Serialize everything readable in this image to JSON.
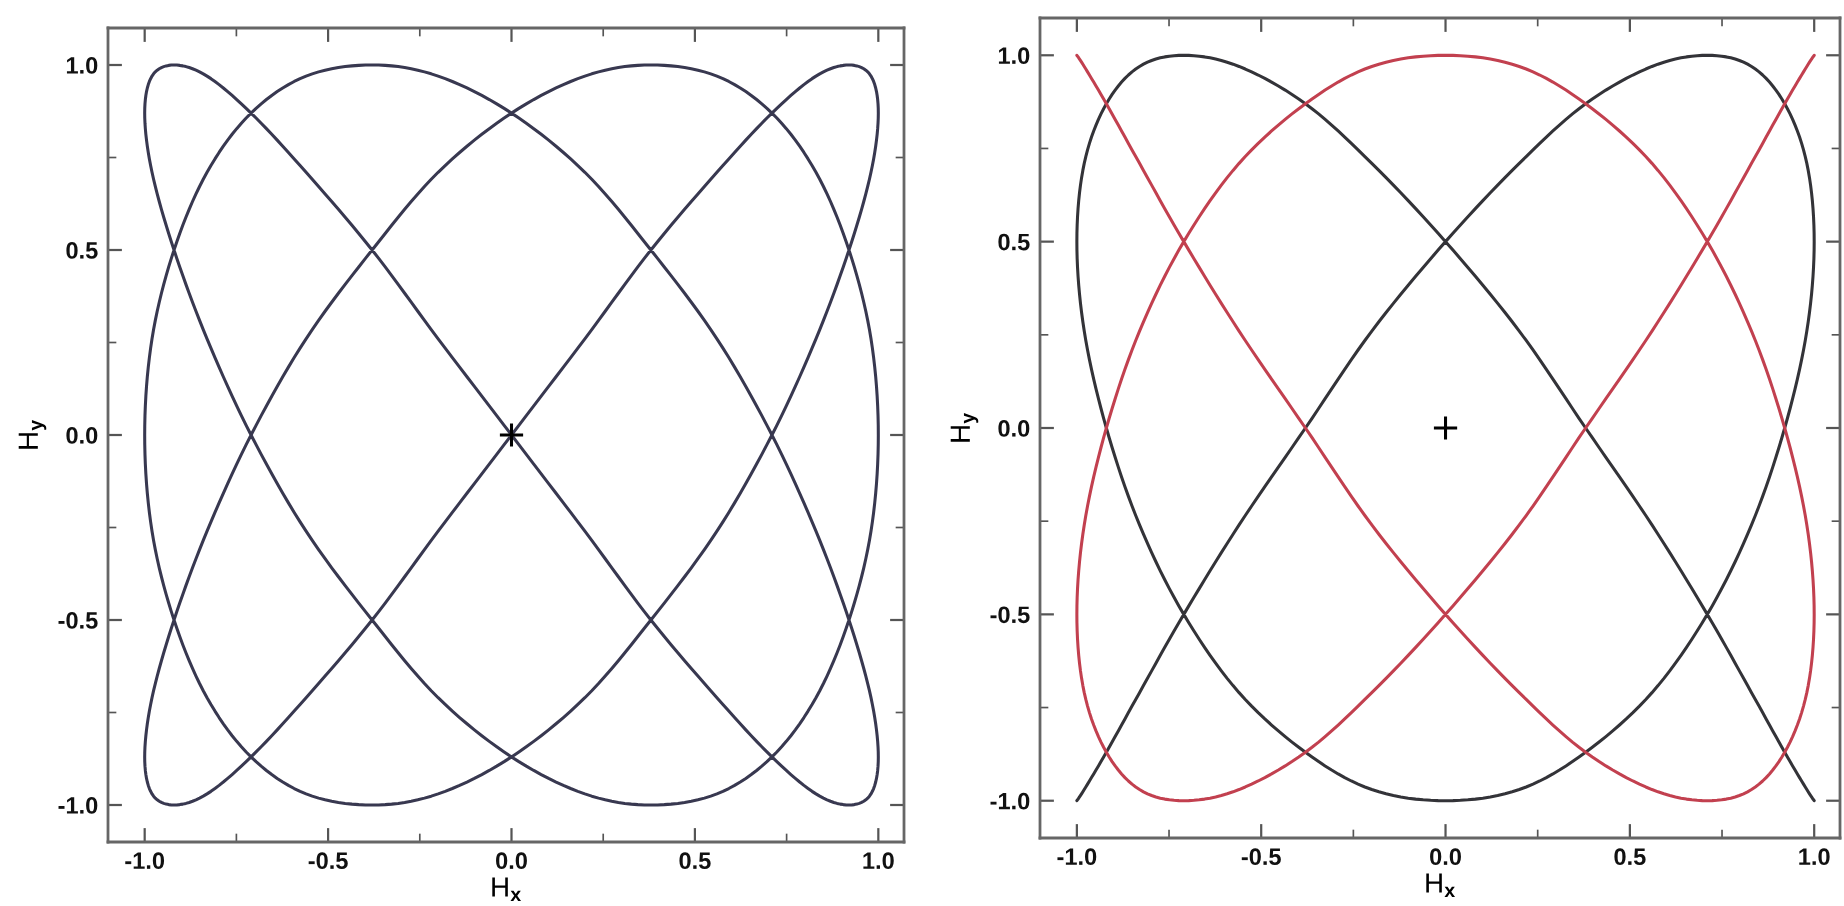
{
  "chart_data": [
    {
      "type": "line",
      "xlabel": "H$_{x}$",
      "ylabel": "H$_{y}$",
      "xlim": [
        -1.1,
        1.07
      ],
      "ylim": [
        -1.1,
        1.1
      ],
      "xticks": [
        {
          "value": -1,
          "label": "-1.0"
        },
        {
          "value": -0.75,
          "label": null
        },
        {
          "value": -0.5,
          "label": "-0.5"
        },
        {
          "value": -0.25,
          "label": null
        },
        {
          "value": 0,
          "label": "0.0"
        },
        {
          "value": 0.25,
          "label": null
        },
        {
          "value": 0.5,
          "label": "0.5"
        },
        {
          "value": 0.75,
          "label": null
        },
        {
          "value": 1,
          "label": "1.0"
        }
      ],
      "yticks": [
        {
          "value": -1,
          "label": "-1.0"
        },
        {
          "value": -0.75,
          "label": null
        },
        {
          "value": -0.5,
          "label": "-0.5"
        },
        {
          "value": -0.25,
          "label": null
        },
        {
          "value": 0,
          "label": "0.0"
        },
        {
          "value": 0.25,
          "label": null
        },
        {
          "value": 0.5,
          "label": "0.5"
        },
        {
          "value": 0.75,
          "label": null
        },
        {
          "value": 1,
          "label": "1.0"
        }
      ],
      "series": [
        {
          "color": "#383850",
          "x": [
            0,
            0.2,
            0.38,
            0.56,
            0.71,
            0.83,
            0.92,
            0.98,
            1,
            0.98,
            0.92,
            0.83,
            0.71,
            0.56,
            0.38,
            0.2,
            0,
            -0.2,
            -0.38,
            -0.56,
            -0.71,
            -0.83,
            -0.92,
            -0.98,
            -1,
            -0.98,
            -0.92,
            -0.83,
            -0.71,
            -0.56,
            -0.38,
            -0.2,
            0,
            0.2,
            0.38,
            0.56,
            0.71,
            0.83,
            0.92,
            0.98,
            1,
            0.98,
            0.92,
            0.83,
            0.71,
            0.56,
            0.38,
            0.2,
            0,
            -0.2,
            -0.38,
            -0.56,
            -0.71,
            -0.83,
            -0.92,
            -0.98,
            -1,
            -0.98,
            -0.92,
            -0.83,
            -0.71,
            -0.56,
            -0.38,
            -0.2,
            0,
            0.2,
            0.38,
            0.56,
            0.71,
            0.83,
            0.92,
            0.98,
            1,
            0.98,
            0.92,
            0.83,
            0.71,
            0.56,
            0.38,
            0.2,
            0,
            -0.2,
            -0.38,
            -0.56,
            -0.71,
            -0.83,
            -0.92,
            -0.98,
            -1,
            -0.98,
            -0.92,
            -0.83,
            -0.71,
            -0.56,
            -0.38,
            -0.2,
            0
          ],
          "values": [
            0,
            0.26,
            0.5,
            0.71,
            0.87,
            0.97,
            1,
            0.97,
            0.87,
            0.71,
            0.5,
            0.26,
            0,
            -0.26,
            -0.5,
            -0.71,
            -0.87,
            -0.97,
            -1,
            -0.97,
            -0.87,
            -0.71,
            -0.5,
            -0.26,
            0,
            0.26,
            0.5,
            0.71,
            0.87,
            0.97,
            1,
            0.97,
            0.87,
            0.71,
            0.5,
            0.26,
            0,
            -0.26,
            -0.5,
            -0.71,
            -0.87,
            -0.97,
            -1,
            -0.97,
            -0.87,
            -0.71,
            -0.5,
            -0.26,
            0,
            0.26,
            0.5,
            0.71,
            0.87,
            0.97,
            1,
            0.97,
            0.87,
            0.71,
            0.5,
            0.26,
            0,
            -0.26,
            -0.5,
            -0.71,
            -0.87,
            -0.97,
            -1,
            -0.97,
            -0.87,
            -0.71,
            -0.5,
            -0.26,
            0,
            0.26,
            0.5,
            0.71,
            0.87,
            0.97,
            1,
            0.97,
            0.87,
            0.71,
            0.5,
            0.26,
            0,
            -0.26,
            -0.5,
            -0.71,
            -0.87,
            -0.97,
            -1,
            -0.97,
            -0.87,
            -0.71,
            -0.5,
            -0.26,
            0
          ]
        },
        {
          "type": "scatter",
          "marker": "cross",
          "color": "#000000",
          "x": [
            0
          ],
          "values": [
            0
          ]
        }
      ]
    },
    {
      "type": "line",
      "xlabel": "H$_{x}$",
      "ylabel": "H$_{y}$",
      "xlim": [
        -1.1,
        1.07
      ],
      "ylim": [
        -1.1,
        1.1
      ],
      "xticks": [
        {
          "value": -1,
          "label": "-1.0"
        },
        {
          "value": -0.75,
          "label": null
        },
        {
          "value": -0.5,
          "label": "-0.5"
        },
        {
          "value": -0.25,
          "label": null
        },
        {
          "value": 0,
          "label": "0.0"
        },
        {
          "value": 0.25,
          "label": null
        },
        {
          "value": 0.5,
          "label": "0.5"
        },
        {
          "value": 0.75,
          "label": null
        },
        {
          "value": 1,
          "label": "1.0"
        }
      ],
      "yticks": [
        {
          "value": -1,
          "label": "-1.0"
        },
        {
          "value": -0.75,
          "label": null
        },
        {
          "value": -0.5,
          "label": "-0.5"
        },
        {
          "value": -0.25,
          "label": null
        },
        {
          "value": 0,
          "label": "0.0"
        },
        {
          "value": 0.25,
          "label": null
        },
        {
          "value": 0.5,
          "label": "0.5"
        },
        {
          "value": 0.75,
          "label": null
        },
        {
          "value": 1,
          "label": "1.0"
        }
      ],
      "series": [
        {
          "color": "#333338",
          "x": [
            1,
            0.98,
            0.92,
            0.83,
            0.71,
            0.56,
            0.38,
            0.2,
            0,
            -0.2,
            -0.38,
            -0.56,
            -0.71,
            -0.83,
            -0.92,
            -0.98,
            -1,
            -0.98,
            -0.92,
            -0.83,
            -0.71,
            -0.56,
            -0.38,
            -0.2,
            0,
            0.2,
            0.38,
            0.56,
            0.71,
            0.83,
            0.92,
            0.98,
            1,
            0.98,
            0.92,
            0.83,
            0.71,
            0.56,
            0.38,
            0.2,
            0,
            -0.2,
            -0.38,
            -0.56,
            -0.71,
            -0.83,
            -0.92,
            -0.98,
            -1
          ],
          "values": [
            -1,
            -0.97,
            -0.87,
            -0.71,
            -0.5,
            -0.26,
            0,
            0.26,
            0.5,
            0.71,
            0.87,
            0.97,
            1,
            0.97,
            0.87,
            0.71,
            0.5,
            0.26,
            0,
            -0.26,
            -0.5,
            -0.71,
            -0.87,
            -0.97,
            -1,
            -0.97,
            -0.87,
            -0.71,
            -0.5,
            -0.26,
            0,
            0.26,
            0.5,
            0.71,
            0.87,
            0.97,
            1,
            0.97,
            0.87,
            0.71,
            0.5,
            0.26,
            0,
            -0.26,
            -0.5,
            -0.71,
            -0.87,
            -0.97,
            -1
          ]
        },
        {
          "color": "#c2404f",
          "x": [
            1,
            0.98,
            0.92,
            0.83,
            0.71,
            0.56,
            0.38,
            0.2,
            0,
            -0.2,
            -0.38,
            -0.56,
            -0.71,
            -0.83,
            -0.92,
            -0.98,
            -1,
            -0.98,
            -0.92,
            -0.83,
            -0.71,
            -0.56,
            -0.38,
            -0.2,
            0,
            0.2,
            0.38,
            0.56,
            0.71,
            0.83,
            0.92,
            0.98,
            1,
            0.98,
            0.92,
            0.83,
            0.71,
            0.56,
            0.38,
            0.2,
            0,
            -0.2,
            -0.38,
            -0.56,
            -0.71,
            -0.83,
            -0.92,
            -0.98,
            -1
          ],
          "values": [
            1,
            0.97,
            0.87,
            0.71,
            0.5,
            0.26,
            0,
            -0.26,
            -0.5,
            -0.71,
            -0.87,
            -0.97,
            -1,
            -0.97,
            -0.87,
            -0.71,
            -0.5,
            -0.26,
            0,
            0.26,
            0.5,
            0.71,
            0.87,
            0.97,
            1,
            0.97,
            0.87,
            0.71,
            0.5,
            0.26,
            0,
            -0.26,
            -0.5,
            -0.71,
            -0.87,
            -0.97,
            -1,
            -0.97,
            -0.87,
            -0.71,
            -0.5,
            -0.26,
            0,
            0.26,
            0.5,
            0.71,
            0.87,
            0.97,
            1
          ]
        },
        {
          "type": "scatter",
          "marker": "cross",
          "color": "#000000",
          "x": [
            0
          ],
          "values": [
            0
          ]
        }
      ]
    }
  ]
}
